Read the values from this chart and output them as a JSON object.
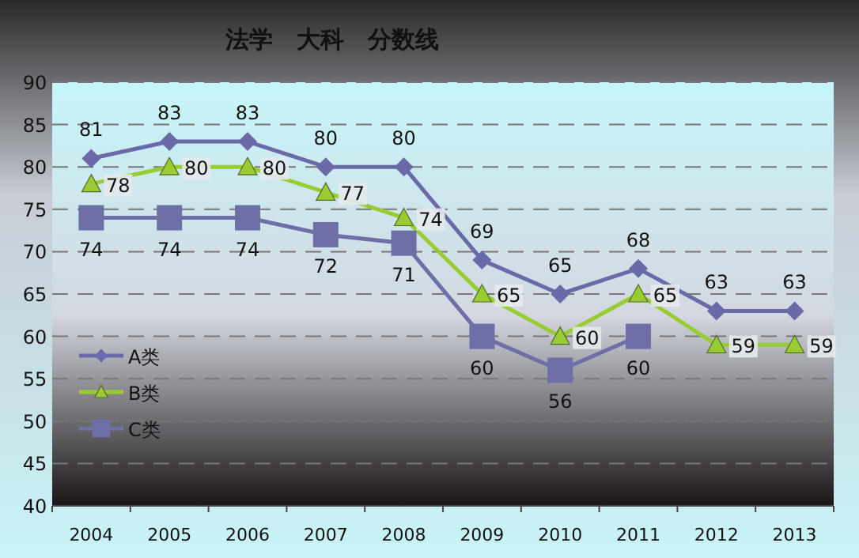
{
  "chart_data": {
    "type": "line",
    "title": "法学　大科　分数线",
    "categories": [
      "2004",
      "2005",
      "2006",
      "2007",
      "2008",
      "2009",
      "2010",
      "2011",
      "2012",
      "2013"
    ],
    "series": [
      {
        "name": "A类",
        "color": "#6a6aa8",
        "marker": "diamond",
        "values": [
          81,
          83,
          83,
          80,
          80,
          69,
          65,
          68,
          63,
          63
        ]
      },
      {
        "name": "B类",
        "color": "#99cc33",
        "marker": "triangle",
        "values": [
          78,
          80,
          80,
          77,
          74,
          65,
          60,
          65,
          59,
          59
        ]
      },
      {
        "name": "C类",
        "color": "#6f6fa8",
        "marker": "square",
        "values": [
          74,
          74,
          74,
          72,
          71,
          60,
          56,
          60,
          null,
          null
        ]
      }
    ],
    "ylim": [
      40,
      90
    ],
    "yticks": [
      40,
      45,
      50,
      55,
      60,
      65,
      70,
      75,
      80,
      85,
      90
    ],
    "grid": "y",
    "legend": "bottom left",
    "data_labels": true,
    "line_style": "solid"
  }
}
